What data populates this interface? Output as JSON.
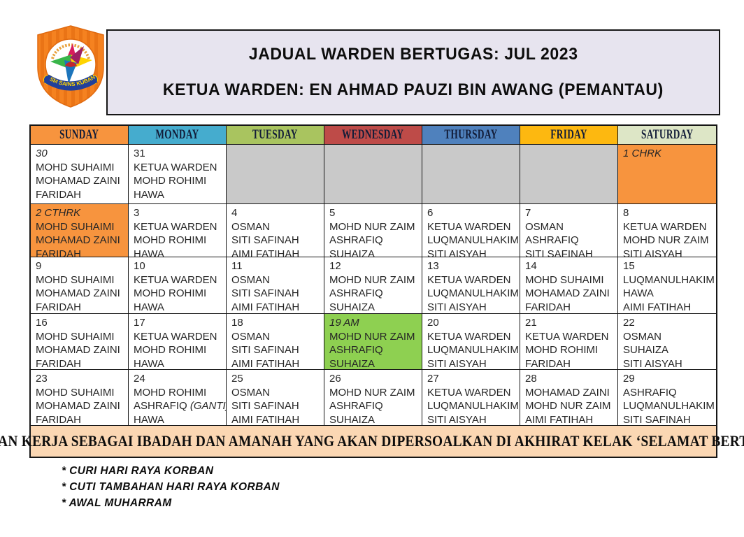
{
  "header": {
    "title_line1": "JADUAL WARDEN BERTUGAS: JUL 2023",
    "title_line2": "KETUA WARDEN: EN AHMAD PAUZI BIN AWANG (PEMANTAU)"
  },
  "logo": {
    "banner_text": "SM SAINS KUBANG PASU"
  },
  "colors": {
    "sunday_header": "#F7943E",
    "monday_header": "#45ACCE",
    "tuesday_header": "#A9C45F",
    "wednesday_header": "#BE4B48",
    "thursday_header": "#4F81BD",
    "friday_header": "#FDB810",
    "saturday_header": "#DDE6C6",
    "empty_cell": "#C9C9C9",
    "highlight_orange": "#F7943E",
    "highlight_green": "#8ED051",
    "banner_bg": "#FBD7B3",
    "title_box_bg": "#E7E4EF"
  },
  "calendar": {
    "day_headers": [
      {
        "label": "SUNDAY",
        "bg": "#F7943E"
      },
      {
        "label": "MONDAY",
        "bg": "#45ACCE"
      },
      {
        "label": "TUESDAY",
        "bg": "#A9C45F"
      },
      {
        "label": "WEDNESDAY",
        "bg": "#BE4B48"
      },
      {
        "label": "THURSDAY",
        "bg": "#4F81BD"
      },
      {
        "label": "FRIDAY",
        "bg": "#FDB810"
      },
      {
        "label": "SATURDAY",
        "bg": "#DDE6C6"
      }
    ],
    "weeks": [
      [
        {
          "day": "30",
          "italic": true,
          "bg": "white",
          "names": [
            "MOHD SUHAIMI",
            "MOHAMAD ZAINI",
            "FARIDAH"
          ]
        },
        {
          "day": "31",
          "bg": "white",
          "names": [
            "KETUA WARDEN",
            "MOHD ROHIMI",
            "HAWA"
          ]
        },
        {
          "day": "",
          "bg": "gray",
          "names": []
        },
        {
          "day": "",
          "bg": "gray",
          "names": []
        },
        {
          "day": "",
          "bg": "gray",
          "names": []
        },
        {
          "day": "",
          "bg": "gray",
          "names": []
        },
        {
          "day": "1 CHRK",
          "italic": true,
          "bg": "orange",
          "names": []
        }
      ],
      [
        {
          "day": "2 CTHRK",
          "italic": true,
          "bg": "orange",
          "names": [
            "MOHD SUHAIMI",
            "MOHAMAD ZAINI",
            "FARIDAH"
          ]
        },
        {
          "day": "3",
          "bg": "white",
          "names": [
            "KETUA WARDEN",
            "MOHD ROHIMI",
            "HAWA"
          ]
        },
        {
          "day": "4",
          "bg": "white",
          "names": [
            "OSMAN",
            "SITI SAFINAH",
            "AIMI FATIHAH"
          ]
        },
        {
          "day": "5",
          "bg": "white",
          "names": [
            "MOHD NUR ZAIM",
            "ASHRAFIQ",
            "SUHAIZA"
          ]
        },
        {
          "day": "6",
          "bg": "white",
          "names": [
            "KETUA WARDEN",
            "LUQMANULHAKIM",
            "SITI AISYAH"
          ]
        },
        {
          "day": "7",
          "bg": "white",
          "names": [
            "OSMAN",
            "ASHRAFIQ",
            "SITI SAFINAH"
          ]
        },
        {
          "day": "8",
          "bg": "white",
          "names": [
            "KETUA WARDEN",
            "MOHD NUR ZAIM",
            "SITI AISYAH"
          ]
        }
      ],
      [
        {
          "day": "9",
          "bg": "white",
          "names": [
            "MOHD SUHAIMI",
            "MOHAMAD ZAINI",
            "FARIDAH"
          ]
        },
        {
          "day": "10",
          "bg": "white",
          "names": [
            "KETUA WARDEN",
            "MOHD ROHIMI",
            "HAWA"
          ]
        },
        {
          "day": "11",
          "bg": "white",
          "names": [
            "OSMAN",
            "SITI SAFINAH",
            "AIMI FATIHAH"
          ]
        },
        {
          "day": "12",
          "bg": "white",
          "names": [
            "MOHD NUR ZAIM",
            "ASHRAFIQ",
            "SUHAIZA"
          ]
        },
        {
          "day": "13",
          "bg": "white",
          "names": [
            "KETUA WARDEN",
            "LUQMANULHAKIM",
            "SITI AISYAH"
          ]
        },
        {
          "day": "14",
          "bg": "white",
          "names": [
            "MOHD SUHAIMI",
            "MOHAMAD ZAINI",
            "FARIDAH"
          ]
        },
        {
          "day": "15",
          "bg": "white",
          "names": [
            "LUQMANULHAKIM",
            "HAWA",
            "AIMI FATIHAH"
          ]
        }
      ],
      [
        {
          "day": "16",
          "bg": "white",
          "names": [
            "MOHD SUHAIMI",
            "MOHAMAD ZAINI",
            "FARIDAH"
          ]
        },
        {
          "day": "17",
          "bg": "white",
          "names": [
            "KETUA WARDEN",
            "MOHD ROHIMI",
            "HAWA"
          ]
        },
        {
          "day": "18",
          "bg": "white",
          "names": [
            "OSMAN",
            "SITI SAFINAH",
            "AIMI FATIHAH"
          ]
        },
        {
          "day": "19 AM",
          "italic": true,
          "bg": "green",
          "names": [
            "MOHD NUR ZAIM",
            "ASHRAFIQ",
            "SUHAIZA"
          ]
        },
        {
          "day": "20",
          "bg": "white",
          "names": [
            "KETUA WARDEN",
            "LUQMANULHAKIM",
            "SITI AISYAH"
          ]
        },
        {
          "day": "21",
          "bg": "white",
          "names": [
            "KETUA WARDEN",
            "MOHD ROHIMI",
            "FARIDAH"
          ]
        },
        {
          "day": "22",
          "bg": "white",
          "names": [
            "OSMAN",
            "SUHAIZA",
            "SITI AISYAH"
          ]
        }
      ],
      [
        {
          "day": "23",
          "bg": "white",
          "names": [
            "MOHD SUHAIMI",
            "MOHAMAD ZAINI",
            "FARIDAH"
          ]
        },
        {
          "day": "24",
          "bg": "white",
          "names": [
            "MOHD ROHIMI",
            "ASHRAFIQ (GANTI)",
            "HAWA"
          ]
        },
        {
          "day": "25",
          "bg": "white",
          "names": [
            "OSMAN",
            "SITI SAFINAH",
            "AIMI FATIHAH"
          ]
        },
        {
          "day": "26",
          "bg": "white",
          "names": [
            "MOHD NUR ZAIM",
            "ASHRAFIQ",
            "SUHAIZA"
          ]
        },
        {
          "day": "27",
          "bg": "white",
          "names": [
            "KETUA WARDEN",
            "LUQMANULHAKIM",
            "SITI AISYAH"
          ]
        },
        {
          "day": "28",
          "bg": "white",
          "names": [
            "MOHAMAD ZAINI",
            "MOHD NUR ZAIM",
            "AIMI FATIHAH"
          ]
        },
        {
          "day": "29",
          "bg": "white",
          "names": [
            "ASHRAFIQ",
            "LUQMANULHAKIM",
            "SITI SAFINAH"
          ]
        }
      ]
    ],
    "banner": "JADIKAN KERJA SEBAGAI IBADAH DAN AMANAH YANG AKAN DIPERSOALKAN DI AKHIRAT KELAK ‘SELAMAT BERTUGAS’"
  },
  "footnotes": [
    "* CURI HARI RAYA KORBAN",
    "* CUTI TAMBAHAN HARI RAYA KORBAN",
    "* AWAL MUHARRAM"
  ]
}
